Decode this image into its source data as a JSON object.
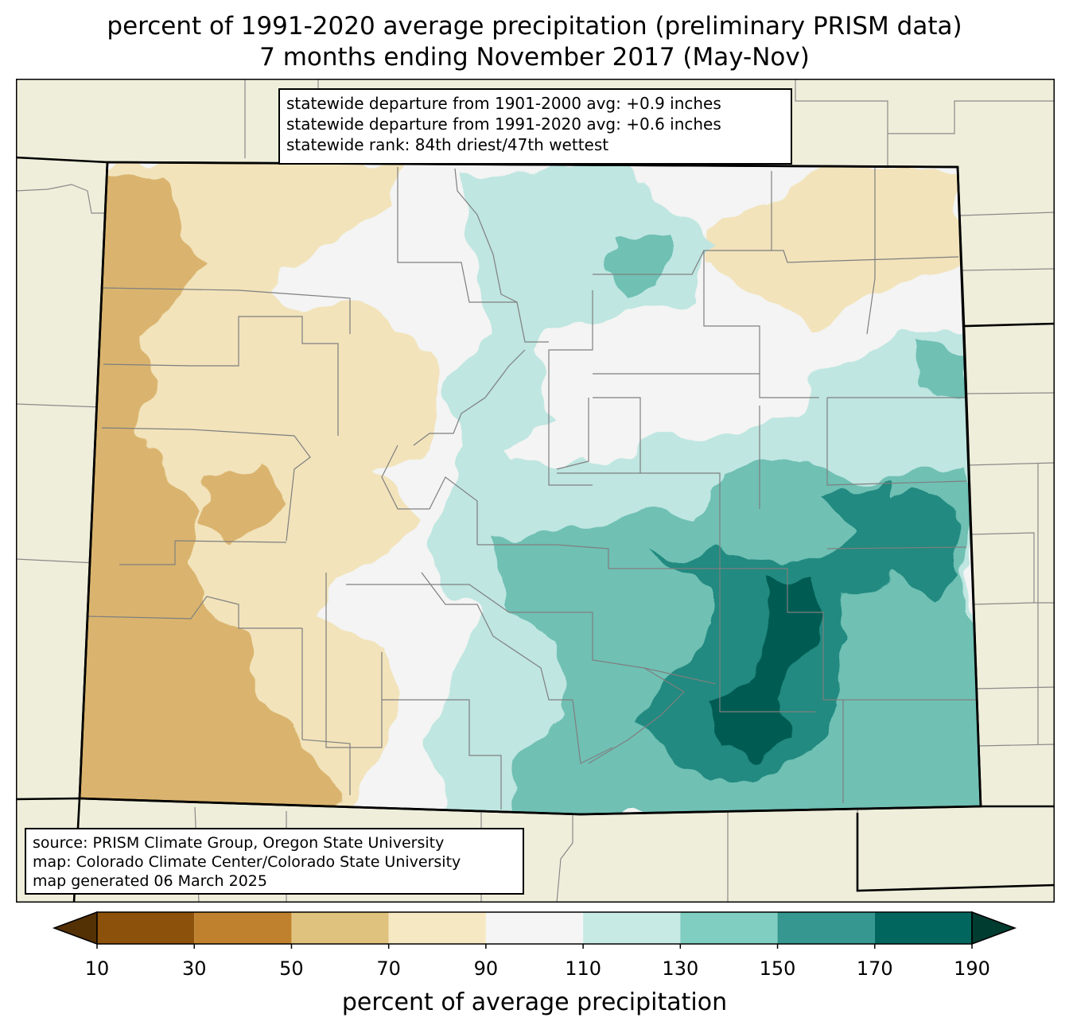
{
  "title_line1": "percent of 1991-2020 average precipitation (preliminary PRISM data)",
  "title_line2": "7 months ending November 2017 (May-Nov)",
  "stats": {
    "line1": "statewide departure from 1901-2000 avg: +0.9 inches",
    "line2": "statewide departure from 1991-2020 avg: +0.6 inches",
    "line3": "statewide rank: 84th driest/47th wettest"
  },
  "source": {
    "line1": "source: PRISM Climate Group, Oregon State University",
    "line2": "map: Colorado Climate Center/Colorado State University",
    "line3": "map generated 06 March 2025"
  },
  "colorbar": {
    "label": "percent of average precipitation",
    "ticks": [
      "10",
      "30",
      "50",
      "70",
      "90",
      "110",
      "130",
      "150",
      "170",
      "190"
    ],
    "colors": [
      "#543005",
      "#8c510a",
      "#bf812d",
      "#dfc27d",
      "#f6e8c3",
      "#f5f5f5",
      "#c7eae5",
      "#80cdc1",
      "#35978f",
      "#01665e",
      "#003c30"
    ]
  },
  "map_colors": {
    "background": "#efeedb",
    "bin_50_70": "#dab46e",
    "bin_70_90": "#f2e3bb",
    "bin_90_110": "#f3f4f3",
    "bin_110_130": "#bfe6e1",
    "bin_130_150": "#6fc0b4",
    "bin_150_170": "#218a80",
    "bin_170_190": "#025c52"
  }
}
